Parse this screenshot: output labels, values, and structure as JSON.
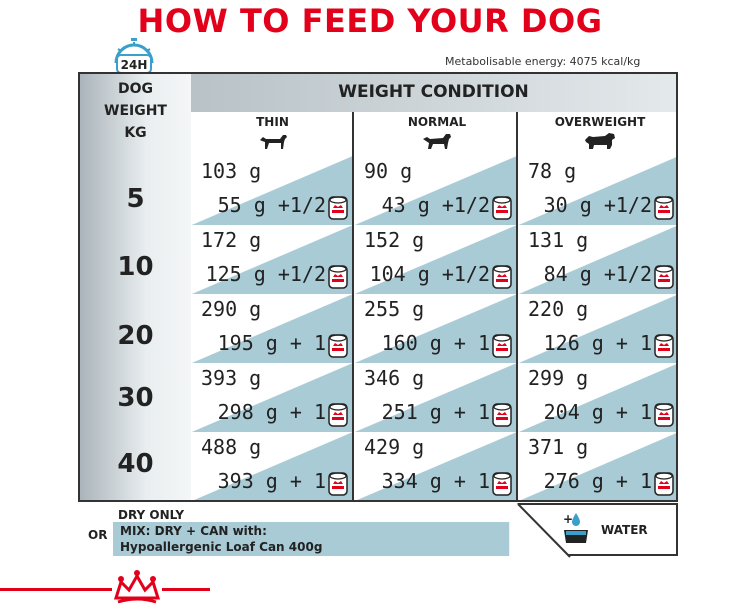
{
  "title": "HOW TO FEED YOUR DOG",
  "clock_label": "24H",
  "energy": "Metabolisable energy: 4075 kcal/kg",
  "weight_header": [
    "DOG",
    "WEIGHT",
    "KG"
  ],
  "weight_condition_label": "WEIGHT CONDITION",
  "columns": [
    {
      "label": "THIN"
    },
    {
      "label": "NORMAL"
    },
    {
      "label": "OVERWEIGHT"
    }
  ],
  "rows": [
    {
      "weight": "5",
      "cells": [
        {
          "dry": "103 g",
          "can": "55 g +1/2"
        },
        {
          "dry": "90 g",
          "can": "43 g +1/2"
        },
        {
          "dry": "78 g",
          "can": "30 g +1/2"
        }
      ]
    },
    {
      "weight": "10",
      "cells": [
        {
          "dry": "172 g",
          "can": "125 g +1/2"
        },
        {
          "dry": "152 g",
          "can": "104 g +1/2"
        },
        {
          "dry": "131 g",
          "can": "84 g +1/2"
        }
      ]
    },
    {
      "weight": "20",
      "cells": [
        {
          "dry": "290 g",
          "can": "195 g + 1"
        },
        {
          "dry": "255 g",
          "can": "160 g + 1"
        },
        {
          "dry": "220 g",
          "can": "126 g + 1"
        }
      ]
    },
    {
      "weight": "30",
      "cells": [
        {
          "dry": "393 g",
          "can": "298 g + 1"
        },
        {
          "dry": "346 g",
          "can": "251 g + 1"
        },
        {
          "dry": "299 g",
          "can": "204 g + 1"
        }
      ]
    },
    {
      "weight": "40",
      "cells": [
        {
          "dry": "488 g",
          "can": "393 g + 1"
        },
        {
          "dry": "429 g",
          "can": "334 g + 1"
        },
        {
          "dry": "371 g",
          "can": "276 g + 1"
        }
      ]
    }
  ],
  "footer": {
    "or": "OR",
    "dry_only": "DRY ONLY",
    "mix_line1": "MIX: DRY + CAN with:",
    "mix_line2": "Hypoallergenic Loaf Can 400g",
    "water": "WATER"
  },
  "colors": {
    "brand_red": "#e3001b",
    "band_blue": "#a8cbd6",
    "clock_blue": "#3a9fc9"
  }
}
